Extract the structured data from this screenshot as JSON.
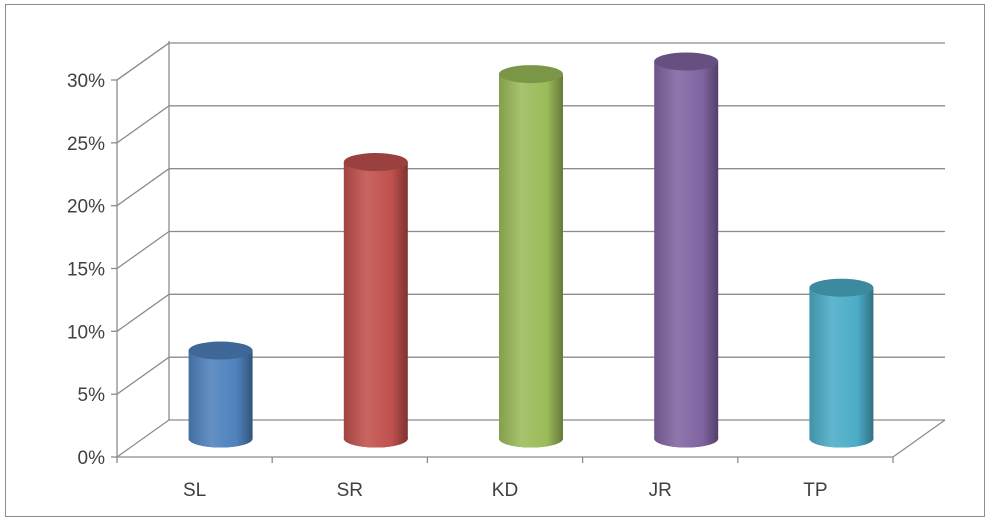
{
  "chart_data": {
    "type": "bar",
    "style": "3d-cylinder",
    "categories": [
      "SL",
      "SR",
      "KD",
      "JR",
      "TP"
    ],
    "values": [
      7,
      22,
      29,
      30,
      12
    ],
    "colors": [
      "#4f81bd",
      "#c0504d",
      "#9bbb59",
      "#8064a2",
      "#4bacc6"
    ],
    "y_ticks": [
      "0%",
      "5%",
      "10%",
      "15%",
      "20%",
      "25%",
      "30%"
    ],
    "ylim": [
      0,
      30
    ],
    "y_unit": "%",
    "grid": true,
    "legend": "none",
    "title": "",
    "xlabel": "",
    "ylabel": ""
  }
}
